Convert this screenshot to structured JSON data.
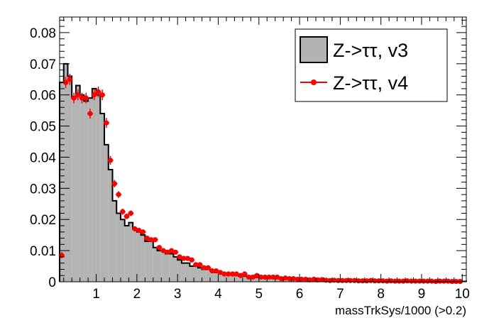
{
  "chart_data": {
    "type": "histogram",
    "xlabel": "massTrkSys/1000 (>0.2)",
    "ylabel": "",
    "xlim": [
      0.1,
      10.1
    ],
    "ylim": [
      0,
      0.085
    ],
    "bin_width": 0.1,
    "x_ticks": [
      "1",
      "2",
      "3",
      "4",
      "5",
      "6",
      "7",
      "8",
      "9",
      "10"
    ],
    "y_ticks": [
      "0",
      "0.01",
      "0.02",
      "0.03",
      "0.04",
      "0.05",
      "0.06",
      "0.07",
      "0.08"
    ],
    "legend_position": "top-right",
    "colors": {
      "hist_fill": "#b3b3b3",
      "hist_line": "#000000",
      "points": "#ff0000"
    },
    "series": [
      {
        "name": "Z->ττ, v3",
        "style": "filled-histogram",
        "bin_lo": [
          0.1,
          0.2,
          0.3,
          0.4,
          0.5,
          0.6,
          0.7,
          0.8,
          0.9,
          1.0,
          1.1,
          1.2,
          1.3,
          1.4,
          1.5,
          1.6,
          1.7,
          1.8,
          1.9,
          2.0,
          2.1,
          2.2,
          2.3,
          2.4,
          2.5,
          2.6,
          2.7,
          2.8,
          2.9,
          3.0,
          3.1,
          3.2,
          3.3,
          3.4,
          3.5,
          3.6,
          3.7,
          3.8,
          3.9,
          4.0,
          4.1,
          4.2,
          4.3,
          4.4,
          4.5,
          4.6,
          4.7,
          4.8,
          4.9,
          5.0,
          5.1,
          5.2,
          5.3,
          5.4,
          5.5,
          5.6,
          5.7,
          5.8,
          5.9,
          6.0,
          6.1,
          6.2,
          6.3,
          6.4,
          6.5,
          6.6,
          6.7,
          6.8,
          6.9,
          7.0,
          7.1,
          7.2,
          7.3,
          7.4,
          7.5,
          7.6,
          7.7,
          7.8,
          7.9,
          8.0,
          8.1,
          8.2,
          8.3,
          8.4,
          8.5,
          8.6,
          8.7,
          8.8,
          8.9,
          9.0,
          9.1,
          9.2,
          9.3,
          9.4,
          9.5,
          9.6,
          9.7,
          9.8,
          9.9,
          10.0
        ],
        "values": [
          0.064,
          0.07,
          0.066,
          0.059,
          0.063,
          0.06,
          0.058,
          0.059,
          0.062,
          0.06,
          0.054,
          0.044,
          0.036,
          0.026,
          0.022,
          0.02,
          0.018,
          0.019,
          0.017,
          0.016,
          0.015,
          0.013,
          0.013,
          0.011,
          0.01,
          0.01,
          0.009,
          0.009,
          0.008,
          0.007,
          0.006,
          0.006,
          0.005,
          0.005,
          0.0045,
          0.004,
          0.004,
          0.0035,
          0.003,
          0.003,
          0.0028,
          0.0025,
          0.0022,
          0.002,
          0.0018,
          0.0018,
          0.0016,
          0.0015,
          0.0014,
          0.0013,
          0.0012,
          0.0012,
          0.0011,
          0.001,
          0.001,
          0.0009,
          0.0009,
          0.0008,
          0.0008,
          0.0007,
          0.0007,
          0.0007,
          0.0006,
          0.0006,
          0.0006,
          0.0005,
          0.0005,
          0.0005,
          0.0005,
          0.0004,
          0.0004,
          0.0004,
          0.0004,
          0.0004,
          0.0003,
          0.0003,
          0.0003,
          0.0003,
          0.0003,
          0.0003,
          0.0003,
          0.0002,
          0.0002,
          0.0002,
          0.0002,
          0.0002,
          0.0002,
          0.0002,
          0.0002,
          0.0002,
          0.0002,
          0.0002,
          0.0002,
          0.0002,
          0.0002,
          0.0002,
          0.0001,
          0.0001,
          0.0001,
          0.0001
        ]
      },
      {
        "name": "Z->ττ, v4",
        "style": "points-with-errors",
        "x": [
          0.15,
          0.25,
          0.35,
          0.45,
          0.55,
          0.65,
          0.75,
          0.85,
          0.95,
          1.05,
          1.15,
          1.25,
          1.35,
          1.45,
          1.55,
          1.65,
          1.75,
          1.85,
          1.95,
          2.05,
          2.15,
          2.25,
          2.35,
          2.45,
          2.55,
          2.65,
          2.75,
          2.85,
          2.95,
          3.05,
          3.15,
          3.25,
          3.35,
          3.45,
          3.55,
          3.65,
          3.75,
          3.85,
          3.95,
          4.05,
          4.15,
          4.25,
          4.35,
          4.45,
          4.55,
          4.65,
          4.75,
          4.85,
          4.95,
          5.05,
          5.15,
          5.25,
          5.35,
          5.45,
          5.55,
          5.65,
          5.75,
          5.85,
          5.95,
          6.05,
          6.15,
          6.25,
          6.35,
          6.45,
          6.55,
          6.65,
          6.75,
          6.85,
          6.95,
          7.05,
          7.15,
          7.25,
          7.35,
          7.45,
          7.55,
          7.65,
          7.75,
          7.85,
          7.95,
          8.05,
          8.15,
          8.25,
          8.35,
          8.45,
          8.55,
          8.65,
          8.75,
          8.85,
          8.95,
          9.05,
          9.15,
          9.25,
          9.35,
          9.45,
          9.55,
          9.65,
          9.75,
          9.85,
          9.95
        ],
        "y": [
          0.0085,
          0.064,
          0.065,
          0.059,
          0.06,
          0.059,
          0.059,
          0.054,
          0.06,
          0.061,
          0.06,
          0.051,
          0.039,
          0.0315,
          0.028,
          0.0225,
          0.021,
          0.022,
          0.017,
          0.0165,
          0.016,
          0.014,
          0.0135,
          0.0135,
          0.011,
          0.01,
          0.0095,
          0.01,
          0.0095,
          0.008,
          0.0075,
          0.0075,
          0.007,
          0.0055,
          0.0055,
          0.0045,
          0.0045,
          0.0035,
          0.0035,
          0.003,
          0.0025,
          0.0025,
          0.0025,
          0.0025,
          0.002,
          0.0025,
          0.0015,
          0.0015,
          0.002,
          0.0015,
          0.0015,
          0.0015,
          0.0015,
          0.0015,
          0.001,
          0.0012,
          0.001,
          0.001,
          0.0008,
          0.0008,
          0.0008,
          0.0006,
          0.0008,
          0.0006,
          0.0007,
          0.0005,
          0.0004,
          0.0005,
          0.0004,
          0.0004,
          0.0004,
          0.0004,
          0.0004,
          0.0003,
          0.0003,
          0.0003,
          0.0004,
          0.0003,
          0.0003,
          0.0003,
          0.0002,
          0.0003,
          0.0002,
          0.0002,
          0.0002,
          0.0003,
          0.0002,
          0.0002,
          0.0002,
          0.0002,
          0.0002,
          0.0002,
          0.0001,
          0.0002,
          0.0002,
          0.0002,
          0.0001,
          0.0001,
          0.0001
        ],
        "yerr": [
          0.001,
          0.0018,
          0.0018,
          0.0017,
          0.0017,
          0.0017,
          0.0017,
          0.0016,
          0.0017,
          0.0017,
          0.0017,
          0.0016,
          0.0014,
          0.0012,
          0.0011,
          0.001,
          0.0009,
          0.0009,
          0.0008,
          0.0008,
          0.0008,
          0.0007,
          0.0007,
          0.0007,
          0.0006,
          0.0006,
          0.0006,
          0.0006,
          0.0006,
          0.0005,
          0.0005,
          0.0005,
          0.0005,
          0.0004,
          0.0004,
          0.0004,
          0.0004,
          0.0003,
          0.0003,
          0.0003,
          0.0003,
          0.0003,
          0.0003,
          0.0003,
          0.0003,
          0.0003,
          0.0002,
          0.0002,
          0.0003,
          0.0002,
          0.0002,
          0.0002,
          0.0002,
          0.0002,
          0.0002,
          0.0002,
          0.0002,
          0.0002,
          0.0002,
          0.0002,
          0.0002,
          0.0002,
          0.0002,
          0.0002,
          0.0002,
          0.0002,
          0.0002,
          0.0002,
          0.0002,
          0.0002,
          0.0002,
          0.0002,
          0.0002,
          0.0002,
          0.0002,
          0.0002,
          0.0002,
          0.0002,
          0.0002,
          0.0002,
          0.0001,
          0.0002,
          0.0001,
          0.0001,
          0.0001,
          0.0002,
          0.0001,
          0.0001,
          0.0001,
          0.0001,
          0.0001,
          0.0001,
          0.0001,
          0.0001,
          0.0001,
          0.0001,
          0.0001,
          0.0001,
          0.0001
        ]
      }
    ]
  }
}
